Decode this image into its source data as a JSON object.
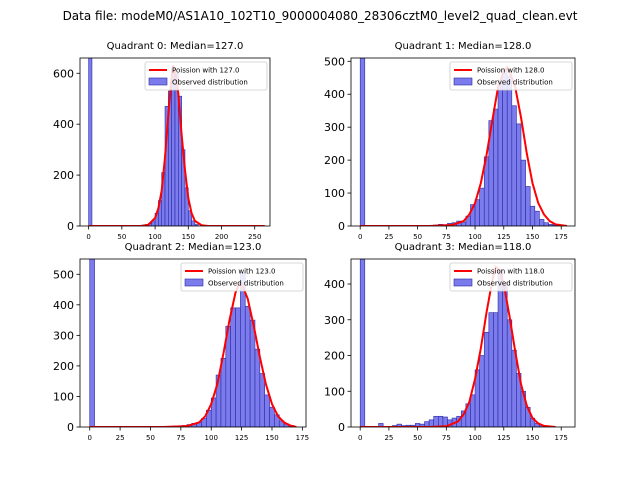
{
  "figure_title": "Data file: modeM0/AS1A10_102T10_9000004080_28306cztM0_level2_quad_clean.evt",
  "colors": {
    "bar_fill": "#7b7bec",
    "bar_edge": "#2a2aa8",
    "curve": "#ff0000",
    "axis": "#000000",
    "legend_edge": "#cccccc"
  },
  "chart_data": [
    {
      "type": "bar",
      "title": "Quadrant 0: Median=127.0",
      "xlim": [
        -13,
        273
      ],
      "ylim": [
        0,
        660
      ],
      "xticks": [
        0,
        50,
        100,
        150,
        200,
        250
      ],
      "yticks": [
        0,
        200,
        400,
        600
      ],
      "bin_width": 5,
      "bins": [
        {
          "x": 0,
          "count": 660
        },
        {
          "x": 80,
          "count": 4
        },
        {
          "x": 85,
          "count": 6
        },
        {
          "x": 90,
          "count": 10
        },
        {
          "x": 95,
          "count": 20
        },
        {
          "x": 100,
          "count": 50
        },
        {
          "x": 105,
          "count": 100
        },
        {
          "x": 110,
          "count": 210
        },
        {
          "x": 115,
          "count": 470
        },
        {
          "x": 120,
          "count": 530
        },
        {
          "x": 125,
          "count": 620
        },
        {
          "x": 130,
          "count": 600
        },
        {
          "x": 135,
          "count": 510
        },
        {
          "x": 140,
          "count": 300
        },
        {
          "x": 145,
          "count": 150
        },
        {
          "x": 150,
          "count": 60
        },
        {
          "x": 155,
          "count": 20
        },
        {
          "x": 160,
          "count": 6
        }
      ],
      "curve": {
        "label": "Poission with 127.0",
        "points": [
          [
            0,
            0
          ],
          [
            60,
            0
          ],
          [
            80,
            0
          ],
          [
            90,
            5
          ],
          [
            100,
            32
          ],
          [
            105,
            70
          ],
          [
            110,
            140
          ],
          [
            115,
            270
          ],
          [
            120,
            440
          ],
          [
            124,
            560
          ],
          [
            127,
            630
          ],
          [
            130,
            610
          ],
          [
            135,
            520
          ],
          [
            140,
            360
          ],
          [
            145,
            220
          ],
          [
            150,
            110
          ],
          [
            155,
            50
          ],
          [
            160,
            20
          ],
          [
            170,
            3
          ],
          [
            180,
            0
          ],
          [
            265,
            0
          ]
        ]
      },
      "legend": [
        "Poission with 127.0",
        "Observed distribution"
      ]
    },
    {
      "type": "bar",
      "title": "Quadrant 1: Median=128.0",
      "xlim": [
        -8,
        187
      ],
      "ylim": [
        0,
        510
      ],
      "xticks": [
        0,
        25,
        50,
        75,
        100,
        125,
        150,
        175
      ],
      "yticks": [
        0,
        100,
        200,
        300,
        400,
        500
      ],
      "bin_width": 4,
      "bins": [
        {
          "x": 0,
          "count": 510
        },
        {
          "x": 60,
          "count": 2
        },
        {
          "x": 64,
          "count": 3
        },
        {
          "x": 68,
          "count": 5
        },
        {
          "x": 72,
          "count": 4
        },
        {
          "x": 76,
          "count": 8
        },
        {
          "x": 80,
          "count": 10
        },
        {
          "x": 84,
          "count": 15
        },
        {
          "x": 88,
          "count": 12
        },
        {
          "x": 92,
          "count": 30
        },
        {
          "x": 96,
          "count": 65
        },
        {
          "x": 100,
          "count": 80
        },
        {
          "x": 104,
          "count": 115
        },
        {
          "x": 108,
          "count": 210
        },
        {
          "x": 112,
          "count": 320
        },
        {
          "x": 116,
          "count": 355
        },
        {
          "x": 120,
          "count": 440
        },
        {
          "x": 124,
          "count": 475
        },
        {
          "x": 128,
          "count": 455
        },
        {
          "x": 132,
          "count": 365
        },
        {
          "x": 136,
          "count": 310
        },
        {
          "x": 140,
          "count": 200
        },
        {
          "x": 144,
          "count": 120
        },
        {
          "x": 148,
          "count": 60
        },
        {
          "x": 152,
          "count": 45
        },
        {
          "x": 156,
          "count": 20
        },
        {
          "x": 160,
          "count": 10
        },
        {
          "x": 164,
          "count": 5
        },
        {
          "x": 168,
          "count": 3
        }
      ],
      "curve": {
        "label": "Poission with 128.0",
        "points": [
          [
            0,
            0
          ],
          [
            60,
            0
          ],
          [
            80,
            3
          ],
          [
            90,
            15
          ],
          [
            95,
            35
          ],
          [
            100,
            70
          ],
          [
            105,
            130
          ],
          [
            110,
            215
          ],
          [
            115,
            320
          ],
          [
            120,
            420
          ],
          [
            125,
            470
          ],
          [
            128,
            482
          ],
          [
            130,
            470
          ],
          [
            135,
            420
          ],
          [
            140,
            330
          ],
          [
            145,
            220
          ],
          [
            150,
            130
          ],
          [
            155,
            70
          ],
          [
            160,
            35
          ],
          [
            165,
            15
          ],
          [
            170,
            5
          ],
          [
            180,
            0
          ]
        ]
      },
      "legend": [
        "Poission with 128.0",
        "Observed distribution"
      ]
    },
    {
      "type": "bar",
      "title": "Quadrant 2: Median=123.0",
      "xlim": [
        -8,
        178
      ],
      "ylim": [
        0,
        550
      ],
      "xticks": [
        0,
        25,
        50,
        75,
        100,
        125,
        150,
        175
      ],
      "yticks": [
        0,
        100,
        200,
        300,
        400,
        500
      ],
      "bin_width": 4,
      "bins": [
        {
          "x": 0,
          "count": 550
        },
        {
          "x": 64,
          "count": 2
        },
        {
          "x": 68,
          "count": 3
        },
        {
          "x": 72,
          "count": 3
        },
        {
          "x": 76,
          "count": 5
        },
        {
          "x": 80,
          "count": 8
        },
        {
          "x": 84,
          "count": 12
        },
        {
          "x": 88,
          "count": 15
        },
        {
          "x": 92,
          "count": 28
        },
        {
          "x": 96,
          "count": 55
        },
        {
          "x": 100,
          "count": 95
        },
        {
          "x": 104,
          "count": 170
        },
        {
          "x": 108,
          "count": 225
        },
        {
          "x": 112,
          "count": 330
        },
        {
          "x": 116,
          "count": 390
        },
        {
          "x": 120,
          "count": 390
        },
        {
          "x": 124,
          "count": 505
        },
        {
          "x": 128,
          "count": 395
        },
        {
          "x": 132,
          "count": 350
        },
        {
          "x": 136,
          "count": 255
        },
        {
          "x": 140,
          "count": 175
        },
        {
          "x": 144,
          "count": 105
        },
        {
          "x": 148,
          "count": 65
        },
        {
          "x": 152,
          "count": 40
        },
        {
          "x": 156,
          "count": 20
        },
        {
          "x": 160,
          "count": 10
        },
        {
          "x": 164,
          "count": 5
        }
      ],
      "curve": {
        "label": "Poission with 123.0",
        "points": [
          [
            0,
            0
          ],
          [
            60,
            0
          ],
          [
            80,
            3
          ],
          [
            90,
            15
          ],
          [
            95,
            35
          ],
          [
            100,
            75
          ],
          [
            105,
            140
          ],
          [
            110,
            240
          ],
          [
            115,
            350
          ],
          [
            120,
            440
          ],
          [
            123,
            470
          ],
          [
            126,
            460
          ],
          [
            130,
            420
          ],
          [
            135,
            330
          ],
          [
            140,
            230
          ],
          [
            145,
            140
          ],
          [
            150,
            75
          ],
          [
            155,
            35
          ],
          [
            160,
            15
          ],
          [
            165,
            5
          ],
          [
            170,
            0
          ]
        ]
      },
      "legend": [
        "Poission with 123.0",
        "Observed distribution"
      ]
    },
    {
      "type": "bar",
      "title": "Quadrant 3: Median=118.0",
      "xlim": [
        -8,
        187
      ],
      "ylim": [
        0,
        470
      ],
      "xticks": [
        0,
        25,
        50,
        75,
        100,
        125,
        150,
        175
      ],
      "yticks": [
        0,
        100,
        200,
        300,
        400
      ],
      "bin_width": 4,
      "bins": [
        {
          "x": 0,
          "count": 470
        },
        {
          "x": 16,
          "count": 10
        },
        {
          "x": 28,
          "count": 4
        },
        {
          "x": 32,
          "count": 8
        },
        {
          "x": 36,
          "count": 4
        },
        {
          "x": 40,
          "count": 5
        },
        {
          "x": 44,
          "count": 5
        },
        {
          "x": 48,
          "count": 10
        },
        {
          "x": 52,
          "count": 8
        },
        {
          "x": 56,
          "count": 15
        },
        {
          "x": 60,
          "count": 20
        },
        {
          "x": 64,
          "count": 30
        },
        {
          "x": 68,
          "count": 30
        },
        {
          "x": 72,
          "count": 28
        },
        {
          "x": 76,
          "count": 20
        },
        {
          "x": 80,
          "count": 25
        },
        {
          "x": 84,
          "count": 30
        },
        {
          "x": 88,
          "count": 45
        },
        {
          "x": 92,
          "count": 65
        },
        {
          "x": 96,
          "count": 90
        },
        {
          "x": 100,
          "count": 160
        },
        {
          "x": 104,
          "count": 200
        },
        {
          "x": 108,
          "count": 265
        },
        {
          "x": 112,
          "count": 320
        },
        {
          "x": 116,
          "count": 320
        },
        {
          "x": 120,
          "count": 440
        },
        {
          "x": 124,
          "count": 405
        },
        {
          "x": 128,
          "count": 300
        },
        {
          "x": 132,
          "count": 215
        },
        {
          "x": 136,
          "count": 150
        },
        {
          "x": 140,
          "count": 100
        },
        {
          "x": 144,
          "count": 55
        },
        {
          "x": 148,
          "count": 25
        },
        {
          "x": 152,
          "count": 10
        },
        {
          "x": 156,
          "count": 5
        }
      ],
      "curve": {
        "label": "Poission with 118.0",
        "points": [
          [
            0,
            0
          ],
          [
            60,
            0
          ],
          [
            75,
            2
          ],
          [
            85,
            15
          ],
          [
            90,
            35
          ],
          [
            95,
            70
          ],
          [
            100,
            135
          ],
          [
            105,
            220
          ],
          [
            110,
            320
          ],
          [
            115,
            410
          ],
          [
            118,
            448
          ],
          [
            121,
            440
          ],
          [
            125,
            400
          ],
          [
            130,
            310
          ],
          [
            135,
            210
          ],
          [
            140,
            120
          ],
          [
            145,
            60
          ],
          [
            150,
            25
          ],
          [
            155,
            10
          ],
          [
            160,
            3
          ],
          [
            170,
            0
          ]
        ]
      },
      "legend": [
        "Poission with 118.0",
        "Observed distribution"
      ]
    }
  ]
}
